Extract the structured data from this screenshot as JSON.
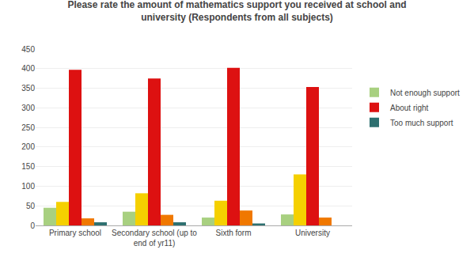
{
  "chart_data": {
    "type": "bar",
    "title": "Please rate the amount of mathematics support you received at school and\nuniversity (Respondents from all subjects)",
    "categories": [
      "Primary school",
      "Secondary school (up to\nend of yr11)",
      "Sixth form",
      "University"
    ],
    "series": [
      {
        "name": "Not enough support",
        "color": "#a8d080",
        "values": [
          45,
          35,
          20,
          28
        ]
      },
      {
        "color": "#f5d000",
        "values": [
          60,
          82,
          63,
          130
        ]
      },
      {
        "name": "About right",
        "color": "#dd1111",
        "values": [
          397,
          375,
          402,
          353
        ]
      },
      {
        "color": "#f07800",
        "values": [
          18,
          27,
          38,
          20
        ]
      },
      {
        "name": "Too much support",
        "color": "#2e7070",
        "values": [
          8,
          8,
          5,
          0
        ]
      }
    ],
    "ylim": [
      0,
      450
    ],
    "yticks": [
      0,
      50,
      100,
      150,
      200,
      250,
      300,
      350,
      400,
      450
    ],
    "grid": true,
    "legend": "right"
  }
}
